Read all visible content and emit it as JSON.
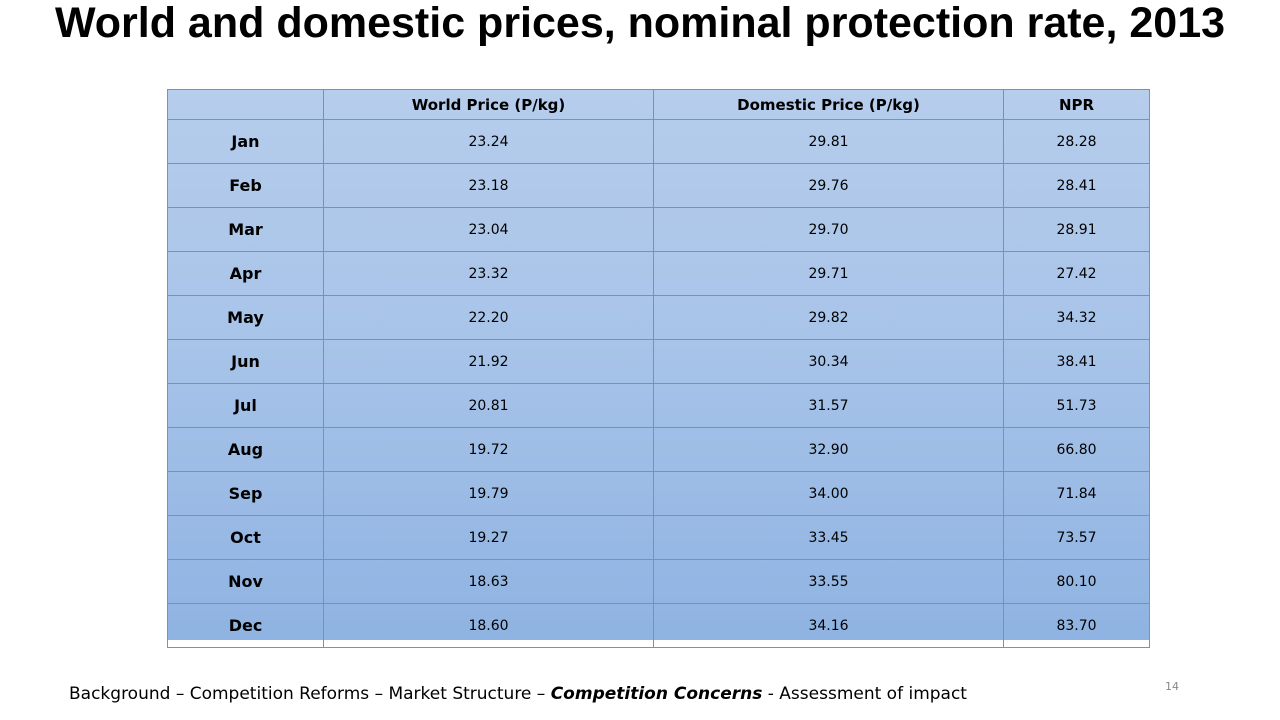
{
  "title": "World and domestic prices, nominal protection rate, 2013",
  "table": {
    "headers": [
      "",
      "World Price (P/kg)",
      "Domestic Price (P/kg)",
      "NPR"
    ],
    "rows": [
      {
        "month": "Jan",
        "world": "23.24",
        "domestic": "29.81",
        "npr": "28.28"
      },
      {
        "month": "Feb",
        "world": "23.18",
        "domestic": "29.76",
        "npr": "28.41"
      },
      {
        "month": "Mar",
        "world": "23.04",
        "domestic": "29.70",
        "npr": "28.91"
      },
      {
        "month": "Apr",
        "world": "23.32",
        "domestic": "29.71",
        "npr": "27.42"
      },
      {
        "month": "May",
        "world": "22.20",
        "domestic": "29.82",
        "npr": "34.32"
      },
      {
        "month": "Jun",
        "world": "21.92",
        "domestic": "30.34",
        "npr": "38.41"
      },
      {
        "month": "Jul",
        "world": "20.81",
        "domestic": "31.57",
        "npr": "51.73"
      },
      {
        "month": "Aug",
        "world": "19.72",
        "domestic": "32.90",
        "npr": "66.80"
      },
      {
        "month": "Sep",
        "world": "19.79",
        "domestic": "34.00",
        "npr": "71.84"
      },
      {
        "month": "Oct",
        "world": "19.27",
        "domestic": "33.45",
        "npr": "73.57"
      },
      {
        "month": "Nov",
        "world": "18.63",
        "domestic": "33.55",
        "npr": "80.10"
      },
      {
        "month": "Dec",
        "world": "18.60",
        "domestic": "34.16",
        "npr": "83.70"
      }
    ]
  },
  "footer": {
    "part1": "Background – Competition Reforms – Market Structure – ",
    "emphasis": "Competition Concerns",
    "part2": " - Assessment of impact"
  },
  "page_number": "14",
  "colors": {
    "table_fill_top": "#b6cdec",
    "table_fill_bottom": "#8fb3e2",
    "table_border": "#5b9bd5"
  }
}
